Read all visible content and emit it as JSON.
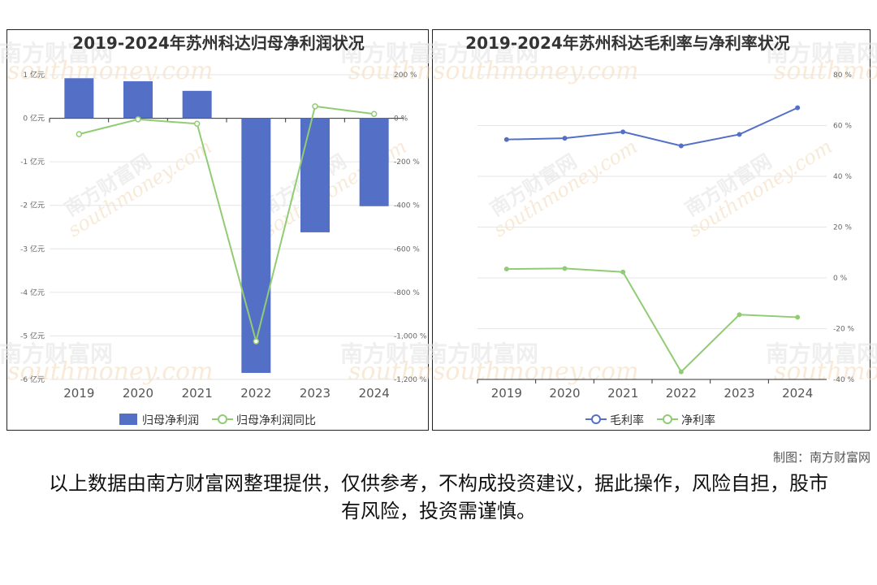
{
  "chart_data": [
    {
      "type": "bar",
      "title": "2019-2024年苏州科达归母净利润状况",
      "categories": [
        "2019",
        "2020",
        "2021",
        "2022",
        "2023",
        "2024"
      ],
      "series": [
        {
          "name": "归母净利润",
          "type": "bar",
          "axis": "left",
          "color": "#5470c6",
          "values": [
            0.92,
            0.85,
            0.63,
            -5.85,
            -2.62,
            -2.02
          ]
        },
        {
          "name": "归母净利润同比",
          "type": "line",
          "axis": "right",
          "color": "#91cc75",
          "values": [
            -73,
            -5,
            -25,
            -1025,
            55,
            20
          ]
        }
      ],
      "y_left": {
        "ticks": [
          "1 亿元",
          "0 亿元",
          "-1 亿元",
          "-2 亿元",
          "-3 亿元",
          "-4 亿元",
          "-5 亿元",
          "-6 亿元"
        ],
        "range": [
          -6,
          1
        ]
      },
      "y_right": {
        "ticks": [
          "200 %",
          "0 %",
          "-200 %",
          "-400 %",
          "-600 %",
          "-800 %",
          "-1,000 %",
          "-1,200 %"
        ],
        "range": [
          -1200,
          200
        ]
      },
      "legend_position": "bottom-center",
      "grid": true
    },
    {
      "type": "line",
      "title": "2019-2024年苏州科达毛利率与净利率状况",
      "categories": [
        "2019",
        "2020",
        "2021",
        "2022",
        "2023",
        "2024"
      ],
      "series": [
        {
          "name": "毛利率",
          "color": "#5470c6",
          "values": [
            54.5,
            55.0,
            57.5,
            52.0,
            56.5,
            67.0
          ]
        },
        {
          "name": "净利率",
          "color": "#91cc75",
          "values": [
            3.5,
            3.7,
            2.3,
            -37.0,
            -14.5,
            -15.5
          ]
        }
      ],
      "y_right": {
        "ticks": [
          "80 %",
          "60 %",
          "40 %",
          "20 %",
          "0 %",
          "-20 %",
          "-40 %"
        ],
        "range": [
          -40,
          80
        ]
      },
      "legend_position": "bottom-center",
      "grid": true
    }
  ],
  "watermark": {
    "cn": "南方财富网",
    "en": "southmoney.com"
  },
  "credit": "制图：南方财富网",
  "disclaimer": "以上数据由南方财富网整理提供，仅供参考，不构成投资建议，据此操作，风险自担，股市有风险，投资需谨慎。"
}
